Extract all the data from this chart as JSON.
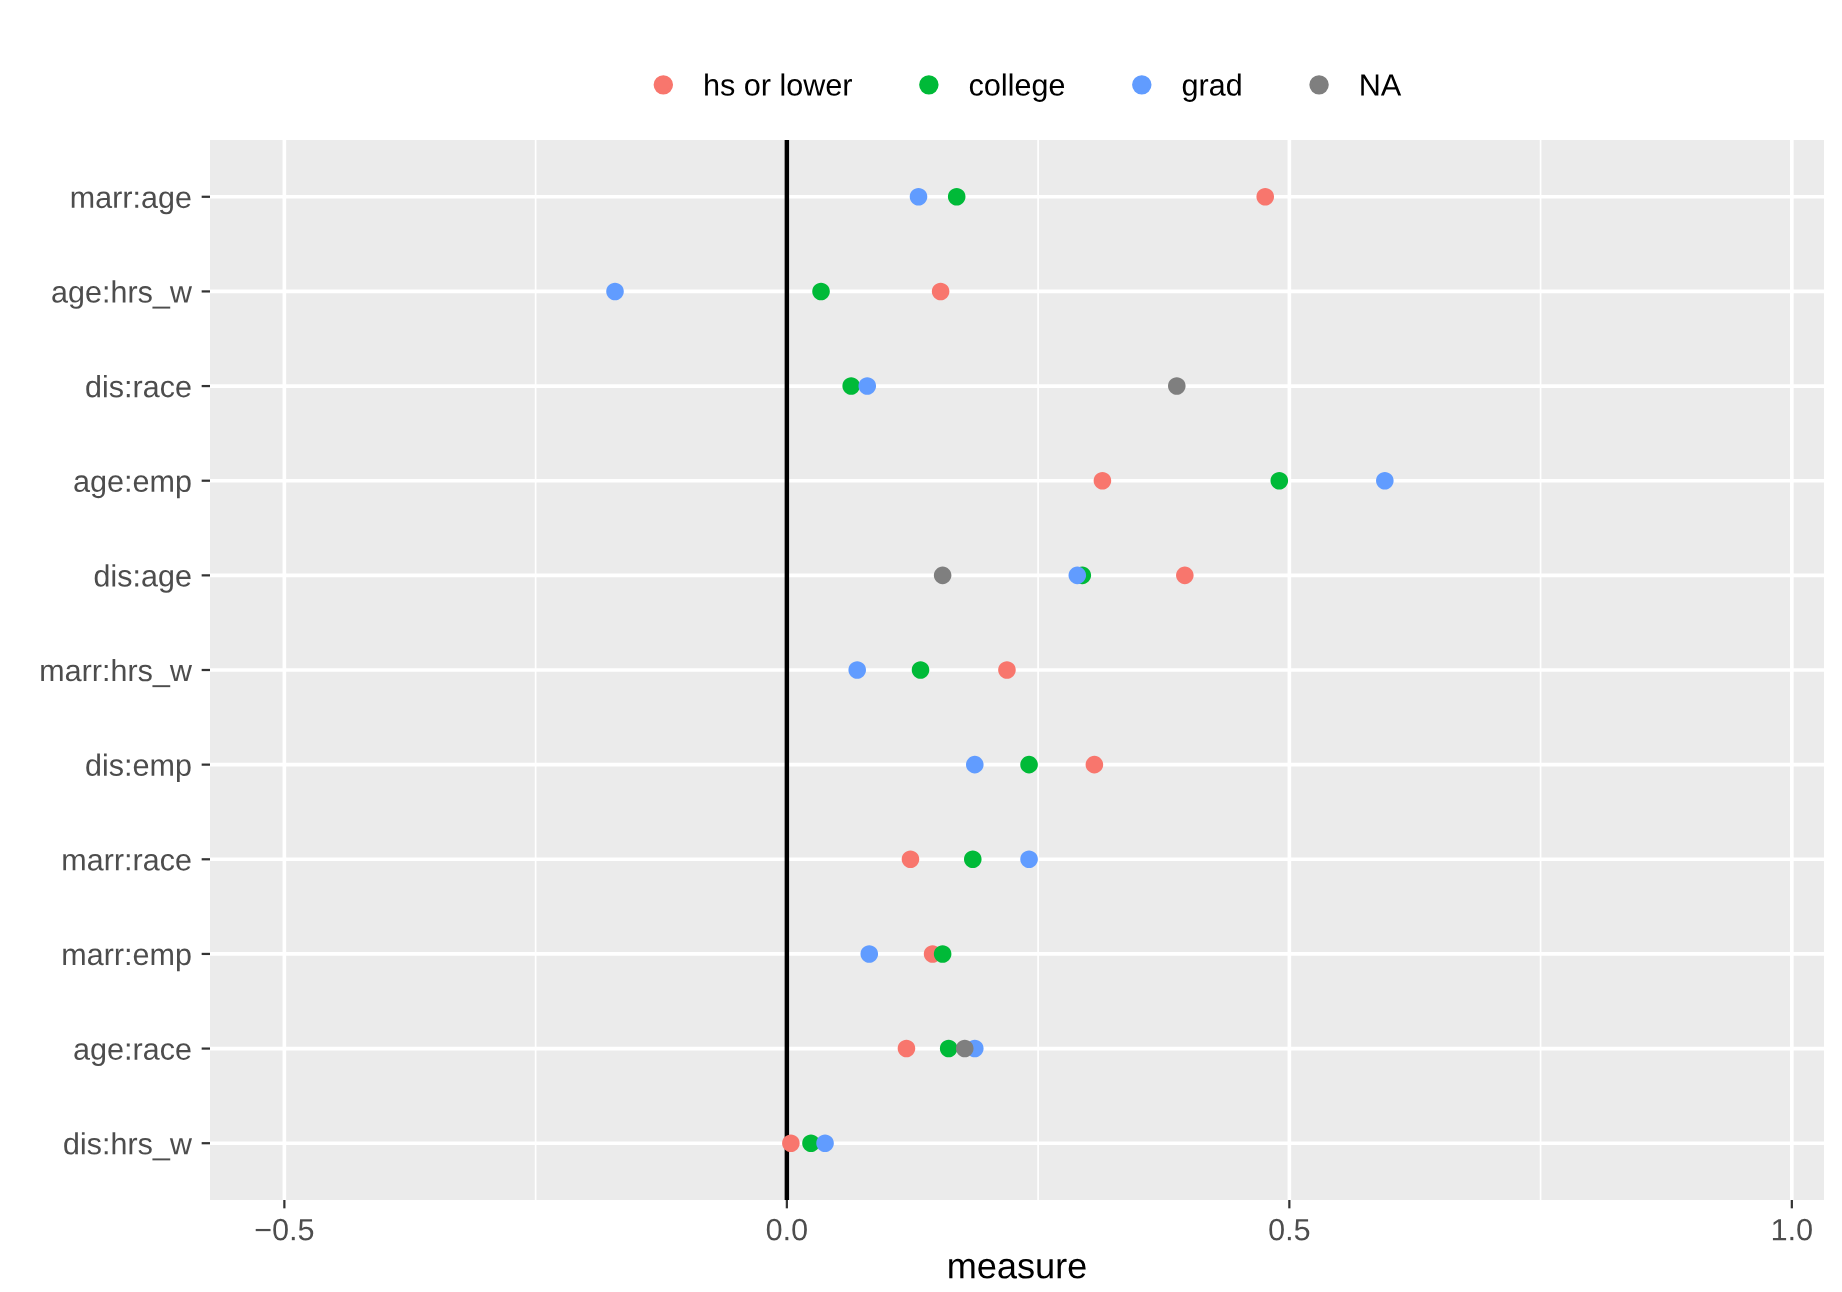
{
  "chart_data": {
    "type": "scatter",
    "orientation": "horizontal",
    "xlabel": "measure",
    "categories": [
      "marr:age",
      "age:hrs_w",
      "dis:race",
      "age:emp",
      "dis:age",
      "marr:hrs_w",
      "dis:emp",
      "marr:race",
      "marr:emp",
      "age:race",
      "dis:hrs_w"
    ],
    "series": [
      {
        "name": "hs or lower",
        "color": "#f8766d",
        "values": [
          0.476,
          0.153,
          null,
          0.314,
          0.396,
          0.219,
          0.306,
          0.123,
          0.145,
          0.119,
          0.004
        ]
      },
      {
        "name": "college",
        "color": "#00ba38",
        "values": [
          0.169,
          0.034,
          0.064,
          0.49,
          0.294,
          0.133,
          0.241,
          0.185,
          0.155,
          0.161,
          0.024
        ]
      },
      {
        "name": "grad",
        "color": "#619cff",
        "values": [
          0.131,
          -0.171,
          0.08,
          0.595,
          0.289,
          0.07,
          0.187,
          0.241,
          0.082,
          0.187,
          0.038
        ]
      },
      {
        "name": "NA",
        "color": "#7f7f7f",
        "values": [
          null,
          null,
          0.388,
          null,
          0.155,
          null,
          null,
          null,
          null,
          0.177,
          null
        ]
      }
    ],
    "xlim": [
      -0.574,
      1.032
    ],
    "xticks": [
      {
        "value": -0.5,
        "label": "−0.5"
      },
      {
        "value": 0,
        "label": "0.0"
      },
      {
        "value": 0.5,
        "label": "0.5"
      },
      {
        "value": 1,
        "label": "1.0"
      }
    ],
    "ref_lines": [
      {
        "axis": "x",
        "value": 0,
        "color": "#000000"
      }
    ],
    "grid": true,
    "legend": "top",
    "marker": "circle"
  }
}
